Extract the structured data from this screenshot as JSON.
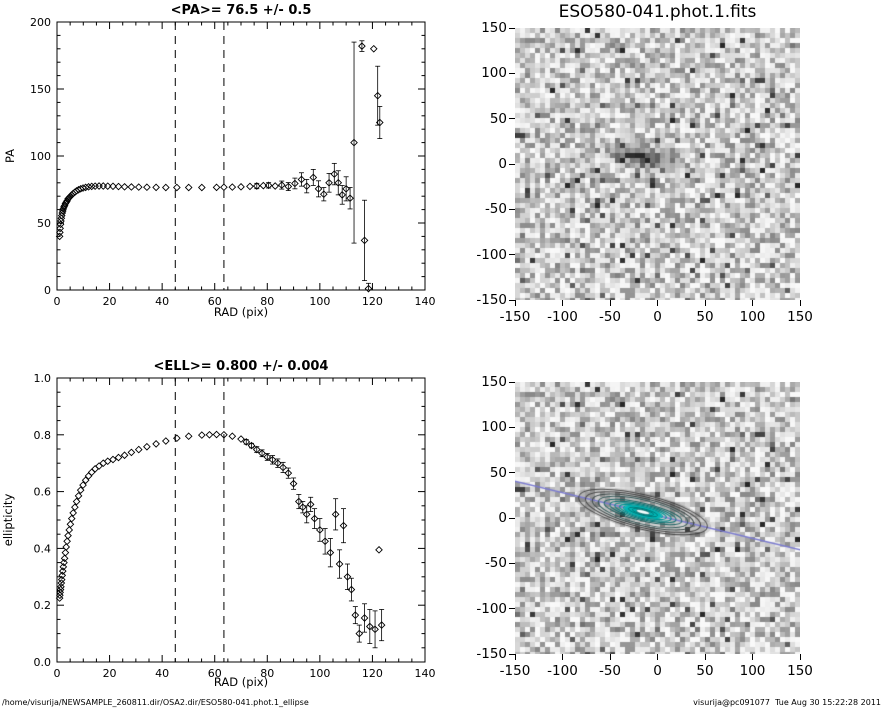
{
  "page": {
    "footer_left": "/home/visurija/NEWSAMPLE_260811.dir/OSA2.dir/ESO580-041.phot.1_ellipse",
    "footer_right": "visurija@pc091077  Tue Aug 30 15:22:28 2011"
  },
  "fits_image": {
    "title": "ESO580-041.phot.1.fits",
    "axis_tick_values": [
      -150,
      -100,
      -50,
      0,
      50,
      100,
      150
    ],
    "axis_tick_labels": [
      "-150",
      "-100",
      "-50",
      "0",
      "50",
      "100",
      "150"
    ]
  },
  "model_image": {
    "axis_tick_values": [
      -150,
      -100,
      -50,
      0,
      50,
      100,
      150
    ],
    "axis_tick_labels": [
      "-150",
      "-100",
      "-50",
      "0",
      "50",
      "100",
      "150"
    ],
    "contour_color": "#00b8b8",
    "core_color": "#f5ffff",
    "line_color": "#7b7bd0"
  },
  "chart_data": [
    {
      "id": "pa",
      "type": "scatter",
      "title": "<PA>= 76.5 +/-  0.5",
      "xlabel": "RAD (pix)",
      "ylabel": "PA",
      "xlim": [
        0,
        140
      ],
      "ylim": [
        0,
        200
      ],
      "xticks": [
        0,
        20,
        40,
        60,
        80,
        100,
        120,
        140
      ],
      "xtick_labels": [
        "0",
        "20",
        "40",
        "60",
        "80",
        "100",
        "120",
        "140"
      ],
      "xminor": 5,
      "yticks": [
        0,
        50,
        100,
        150,
        200
      ],
      "ytick_labels": [
        "0",
        "50",
        "100",
        "150",
        "200"
      ],
      "yminor": 10,
      "dashed_vlines": [
        45,
        63.5
      ],
      "marker": "diamond",
      "points": [
        [
          1.0,
          40,
          0
        ],
        [
          1.1,
          43,
          0
        ],
        [
          1.2,
          46,
          0
        ],
        [
          1.35,
          49,
          0
        ],
        [
          1.5,
          51.5,
          0
        ],
        [
          1.65,
          53.5,
          0
        ],
        [
          1.8,
          55.5,
          0
        ],
        [
          2.0,
          57.5,
          0
        ],
        [
          2.2,
          59,
          0
        ],
        [
          2.4,
          60.5,
          0
        ],
        [
          2.65,
          62,
          0
        ],
        [
          2.9,
          63,
          0
        ],
        [
          3.2,
          64.5,
          0
        ],
        [
          3.5,
          65.5,
          0
        ],
        [
          3.85,
          66.5,
          0
        ],
        [
          4.2,
          68,
          0
        ],
        [
          4.65,
          69,
          0
        ],
        [
          5.1,
          70,
          0
        ],
        [
          5.6,
          71,
          0
        ],
        [
          6.15,
          72,
          0
        ],
        [
          6.8,
          73,
          0
        ],
        [
          7.45,
          74,
          0
        ],
        [
          8.2,
          74.8,
          0
        ],
        [
          9.0,
          75.5,
          0
        ],
        [
          9.9,
          76.1,
          0
        ],
        [
          10.9,
          76.6,
          0
        ],
        [
          12.0,
          77.0,
          0
        ],
        [
          13.2,
          77.3,
          0
        ],
        [
          14.5,
          77.5,
          0
        ],
        [
          16.0,
          77.6,
          0
        ],
        [
          17.6,
          77.6,
          0
        ],
        [
          19.3,
          77.5,
          0
        ],
        [
          21.3,
          77.4,
          0
        ],
        [
          23.4,
          77.2,
          0
        ],
        [
          25.7,
          77.0,
          0
        ],
        [
          28.3,
          76.9,
          0
        ],
        [
          31.1,
          76.8,
          0
        ],
        [
          34.2,
          76.7,
          0
        ],
        [
          37.7,
          76.6,
          0
        ],
        [
          41.4,
          76.5,
          0
        ],
        [
          45.6,
          76.5,
          0
        ],
        [
          50.1,
          76.5,
          0
        ],
        [
          55.1,
          76.5,
          0
        ],
        [
          60.7,
          76.6,
          0
        ],
        [
          63.5,
          76.7,
          0
        ],
        [
          66.7,
          76.8,
          0
        ],
        [
          70.0,
          77.0,
          0
        ],
        [
          73.4,
          77.3,
          0
        ],
        [
          76.0,
          77.6,
          2
        ],
        [
          78.5,
          77.9,
          0
        ],
        [
          80.5,
          78.1,
          2
        ],
        [
          83.0,
          77.6,
          0
        ],
        [
          85.5,
          78.3,
          3
        ],
        [
          88.0,
          77.2,
          3
        ],
        [
          90.5,
          79.5,
          4
        ],
        [
          93.0,
          82.5,
          5
        ],
        [
          95.0,
          77.5,
          5
        ],
        [
          97.5,
          84.0,
          6
        ],
        [
          99.5,
          75.5,
          6
        ],
        [
          101.5,
          71.5,
          5
        ],
        [
          103.5,
          80.0,
          7
        ],
        [
          105.5,
          86.5,
          8
        ],
        [
          107.0,
          80.0,
          9
        ],
        [
          108.5,
          71.0,
          7
        ],
        [
          110.0,
          75.5,
          9
        ],
        [
          111.5,
          68.5,
          8
        ],
        [
          113.0,
          110.0,
          75
        ],
        [
          116.0,
          182.0,
          4
        ],
        [
          117.0,
          37.0,
          30
        ],
        [
          118.5,
          1.0,
          4
        ],
        [
          120.5,
          180.0,
          0
        ],
        [
          122.0,
          145.0,
          22
        ],
        [
          122.8,
          125.0,
          12
        ]
      ]
    },
    {
      "id": "ell",
      "type": "scatter",
      "title": "<ELL>= 0.800 +/-  0.004",
      "xlabel": "RAD (pix)",
      "ylabel": "ellipticity",
      "xlim": [
        0,
        140
      ],
      "ylim": [
        0,
        1.0
      ],
      "xticks": [
        0,
        20,
        40,
        60,
        80,
        100,
        120,
        140
      ],
      "xtick_labels": [
        "0",
        "20",
        "40",
        "60",
        "80",
        "100",
        "120",
        "140"
      ],
      "xminor": 5,
      "yticks": [
        0,
        0.2,
        0.4,
        0.6,
        0.8,
        1.0
      ],
      "ytick_labels": [
        "0.0",
        "0.2",
        "0.4",
        "0.6",
        "0.8",
        "1.0"
      ],
      "yminor": 0.05,
      "dashed_vlines": [
        45,
        63.5
      ],
      "marker": "diamond",
      "points": [
        [
          1.0,
          0.225,
          0
        ],
        [
          1.1,
          0.235,
          0
        ],
        [
          1.2,
          0.245,
          0
        ],
        [
          1.35,
          0.255,
          0
        ],
        [
          1.5,
          0.265,
          0
        ],
        [
          1.65,
          0.278,
          0
        ],
        [
          1.8,
          0.29,
          0
        ],
        [
          2.0,
          0.305,
          0
        ],
        [
          2.2,
          0.32,
          0
        ],
        [
          2.4,
          0.335,
          0
        ],
        [
          2.65,
          0.35,
          0
        ],
        [
          2.9,
          0.365,
          0
        ],
        [
          3.2,
          0.385,
          0
        ],
        [
          3.5,
          0.405,
          0
        ],
        [
          3.85,
          0.425,
          0
        ],
        [
          4.2,
          0.445,
          0
        ],
        [
          4.65,
          0.465,
          0
        ],
        [
          5.1,
          0.485,
          0
        ],
        [
          5.6,
          0.505,
          0
        ],
        [
          6.15,
          0.525,
          0
        ],
        [
          6.8,
          0.545,
          0
        ],
        [
          7.45,
          0.565,
          0
        ],
        [
          8.2,
          0.585,
          0
        ],
        [
          9.0,
          0.605,
          0
        ],
        [
          9.9,
          0.623,
          0
        ],
        [
          10.9,
          0.64,
          0
        ],
        [
          12.0,
          0.655,
          0
        ],
        [
          13.2,
          0.668,
          0
        ],
        [
          14.5,
          0.68,
          0
        ],
        [
          16.0,
          0.69,
          0
        ],
        [
          17.6,
          0.7,
          0
        ],
        [
          19.3,
          0.707,
          0
        ],
        [
          21.3,
          0.713,
          0
        ],
        [
          23.4,
          0.72,
          0
        ],
        [
          25.7,
          0.728,
          0
        ],
        [
          28.3,
          0.738,
          0
        ],
        [
          31.1,
          0.748,
          0
        ],
        [
          34.2,
          0.758,
          0
        ],
        [
          37.7,
          0.768,
          0
        ],
        [
          41.4,
          0.778,
          0
        ],
        [
          45.6,
          0.788,
          0
        ],
        [
          50.1,
          0.795,
          0
        ],
        [
          55.1,
          0.799,
          0
        ],
        [
          58.0,
          0.8,
          0
        ],
        [
          60.7,
          0.801,
          0
        ],
        [
          63.5,
          0.8,
          0
        ],
        [
          66.7,
          0.795,
          0
        ],
        [
          70.0,
          0.785,
          0
        ],
        [
          72.0,
          0.775,
          0.008
        ],
        [
          74.0,
          0.762,
          0.008
        ],
        [
          76.0,
          0.748,
          0.01
        ],
        [
          78.0,
          0.735,
          0.012
        ],
        [
          80.0,
          0.722,
          0.012
        ],
        [
          82.0,
          0.712,
          0.015
        ],
        [
          84.0,
          0.7,
          0.015
        ],
        [
          86.0,
          0.685,
          0.018
        ],
        [
          88.0,
          0.665,
          0.018
        ],
        [
          90.0,
          0.628,
          0.02
        ],
        [
          92.0,
          0.565,
          0.025
        ],
        [
          93.5,
          0.545,
          0.02
        ],
        [
          95.0,
          0.52,
          0.03
        ],
        [
          96.5,
          0.555,
          0.025
        ],
        [
          98.0,
          0.505,
          0.035
        ],
        [
          100.0,
          0.465,
          0.04
        ],
        [
          102.0,
          0.425,
          0.045
        ],
        [
          104.0,
          0.385,
          0.05
        ],
        [
          106.0,
          0.52,
          0.055
        ],
        [
          107.5,
          0.345,
          0.05
        ],
        [
          109.0,
          0.48,
          0.06
        ],
        [
          110.5,
          0.3,
          0.045
        ],
        [
          112.0,
          0.255,
          0.04
        ],
        [
          113.5,
          0.165,
          0.03
        ],
        [
          115.0,
          0.1,
          0.03
        ],
        [
          117.0,
          0.155,
          0.05
        ],
        [
          119.0,
          0.125,
          0.06
        ],
        [
          121.0,
          0.115,
          0.065
        ],
        [
          122.5,
          0.395,
          0
        ],
        [
          123.5,
          0.13,
          0.055
        ]
      ]
    }
  ]
}
